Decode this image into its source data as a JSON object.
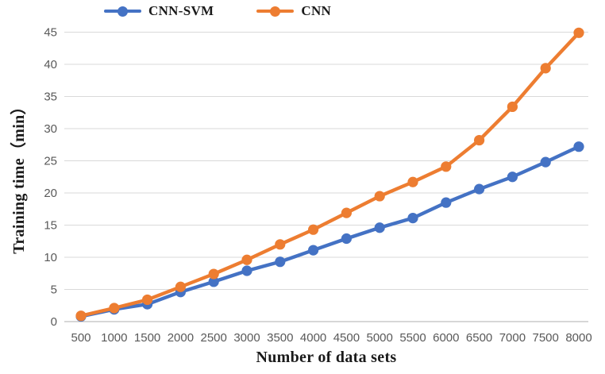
{
  "colors": {
    "background": "#ffffff",
    "gridline": "#d9d9d9",
    "axis_line": "#bfbfbf",
    "tick_label": "#595959",
    "title_text": "#1a1a1a"
  },
  "legend": {
    "items": [
      {
        "label": "CNN-SVM",
        "color": "#4472c4"
      },
      {
        "label": "CNN",
        "color": "#ed7d31"
      }
    ]
  },
  "chart_data": {
    "type": "line",
    "title": "",
    "xlabel": "Number of data sets",
    "ylabel": "Training time（min）",
    "x": [
      500,
      1000,
      1500,
      2000,
      2500,
      3000,
      3500,
      4000,
      4500,
      5000,
      5500,
      6000,
      6500,
      7000,
      7500,
      8000
    ],
    "series": [
      {
        "name": "CNN-SVM",
        "color": "#4472c4",
        "values": [
          0.8,
          1.9,
          2.7,
          4.6,
          6.2,
          7.9,
          9.3,
          11.1,
          12.9,
          14.6,
          16.1,
          18.5,
          20.6,
          22.5,
          24.8,
          27.2
        ]
      },
      {
        "name": "CNN",
        "color": "#ed7d31",
        "values": [
          0.9,
          2.1,
          3.4,
          5.4,
          7.4,
          9.6,
          12.0,
          14.3,
          16.9,
          19.5,
          21.7,
          24.1,
          28.2,
          33.4,
          39.4,
          44.9
        ]
      }
    ],
    "ylim": [
      0,
      45
    ],
    "ytick_step": 5,
    "yticks": [
      0,
      5,
      10,
      15,
      20,
      25,
      30,
      35,
      40,
      45
    ],
    "grid": true,
    "legend_position": "top",
    "marker": "circle"
  }
}
